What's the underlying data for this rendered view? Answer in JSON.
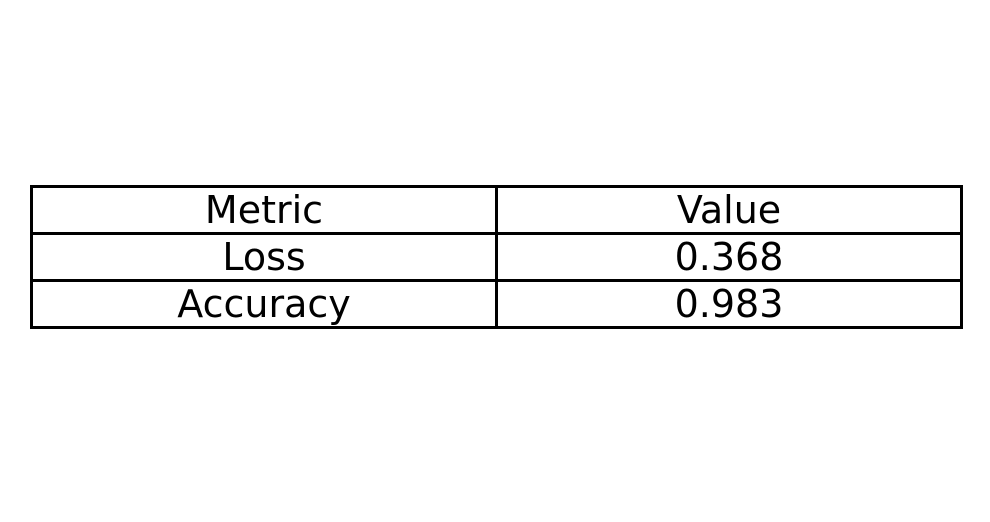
{
  "chart_data": {
    "type": "table",
    "columns": [
      "Metric",
      "Value"
    ],
    "rows": [
      [
        "Loss",
        "0.368"
      ],
      [
        "Accuracy",
        "0.983"
      ]
    ]
  }
}
